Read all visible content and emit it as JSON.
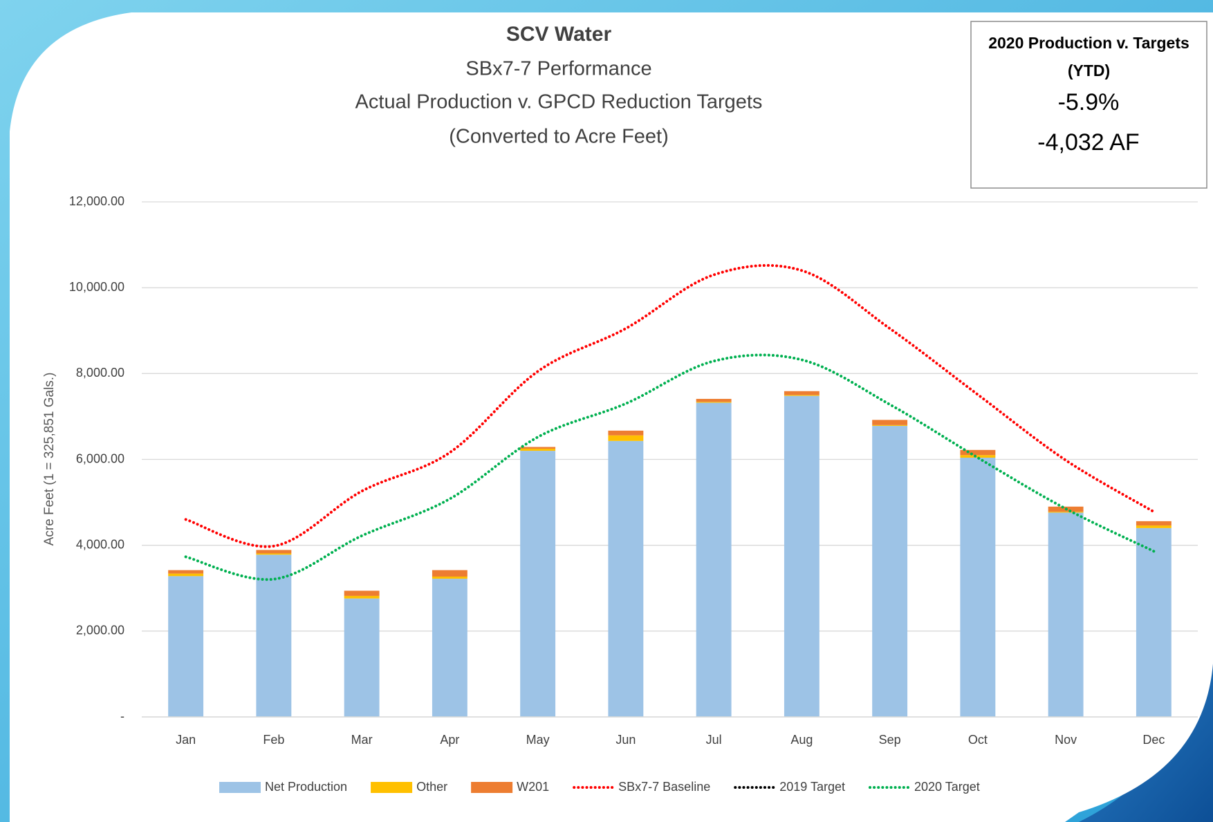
{
  "chart_data": {
    "type": "bar",
    "title": "SCV Water",
    "subtitle": [
      "SBx7-7 Performance",
      "Actual Production v. GPCD Reduction Targets",
      "(Converted to Acre Feet)"
    ],
    "y_label": "Acre Feet (1 = 325,851 Gals.)",
    "info_box": {
      "title": "2020 Production v. Targets (YTD)",
      "lines": [
        "-5.9%",
        "-4,032 AF"
      ]
    },
    "categories": [
      "Jan",
      "Feb",
      "Mar",
      "Apr",
      "May",
      "Jun",
      "Jul",
      "Aug",
      "Sep",
      "Oct",
      "Nov",
      "Dec"
    ],
    "series": [
      {
        "name": "Net Production",
        "type": "bar",
        "color": "#9dc3e6",
        "values": [
          3280,
          3780,
          2760,
          3220,
          6200,
          6430,
          7320,
          7480,
          6780,
          6040,
          4760,
          4400
        ]
      },
      {
        "name": "Other",
        "type": "bar",
        "color": "#ffc000",
        "values": [
          60,
          30,
          60,
          50,
          50,
          130,
          20,
          20,
          20,
          60,
          20,
          60
        ]
      },
      {
        "name": "W201",
        "type": "bar",
        "color": "#ed7d31",
        "values": [
          80,
          80,
          120,
          150,
          40,
          110,
          70,
          90,
          120,
          120,
          120,
          100
        ]
      },
      {
        "name": "SBx7-7 Baseline",
        "type": "line",
        "color": "#ff0000",
        "values": [
          4600,
          3980,
          5260,
          6160,
          8050,
          9050,
          10300,
          10400,
          9050,
          7510,
          5980,
          4780
        ]
      },
      {
        "name": "2019 Target",
        "type": "line",
        "color": "#000000",
        "values": [
          null,
          null,
          null,
          null,
          null,
          null,
          null,
          null,
          null,
          null,
          null,
          null
        ]
      },
      {
        "name": "2020 Target",
        "type": "line",
        "color": "#00b050",
        "values": [
          3730,
          3210,
          4220,
          5080,
          6520,
          7300,
          8290,
          8320,
          7280,
          6040,
          4850,
          3860
        ]
      }
    ],
    "ylim": [
      0,
      12000
    ],
    "yticks": [
      {
        "value": 0,
        "label": "-"
      },
      {
        "value": 2000,
        "label": "2,000.00"
      },
      {
        "value": 4000,
        "label": "4,000.00"
      },
      {
        "value": 6000,
        "label": "6,000.00"
      },
      {
        "value": 8000,
        "label": "8,000.00"
      },
      {
        "value": 10000,
        "label": "10,000.00"
      },
      {
        "value": 12000,
        "label": "12,000.00"
      }
    ],
    "grid": true,
    "legend": "bottom"
  }
}
